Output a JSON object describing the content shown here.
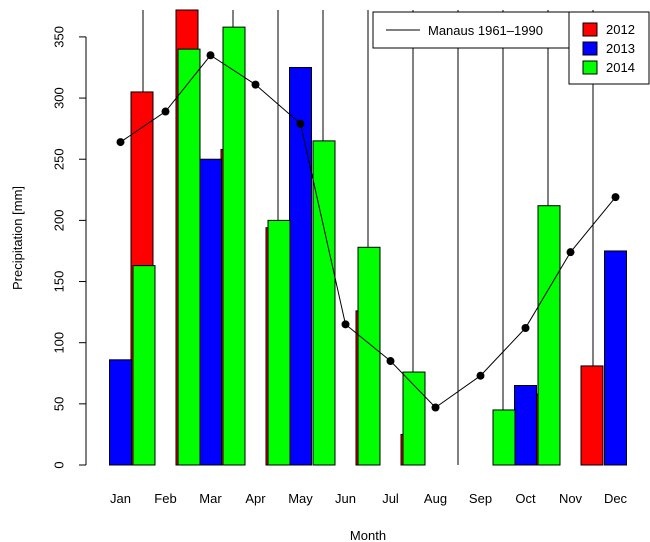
{
  "chart_data": {
    "type": "bar",
    "xlabel": "Month",
    "ylabel": "Precipitation [mm]",
    "ylim": [
      0,
      372
    ],
    "yticks": [
      0,
      50,
      100,
      150,
      200,
      250,
      300,
      350
    ],
    "categories": [
      "Jan",
      "Feb",
      "Mar",
      "Apr",
      "May",
      "Jun",
      "Jul",
      "Aug",
      "Sep",
      "Oct",
      "Nov",
      "Dec"
    ],
    "series": [
      {
        "name": "2012",
        "color": "#ff0000",
        "values": [
          0,
          305,
          372,
          258,
          194,
          0,
          126,
          25,
          0,
          0,
          58,
          81
        ]
      },
      {
        "name": "2013",
        "color": "#0000ff",
        "values": [
          86,
          0,
          250,
          0,
          325,
          0,
          0,
          0,
          0,
          65,
          0,
          175
        ]
      },
      {
        "name": "2014",
        "color": "#00ff00",
        "values": [
          163,
          340,
          358,
          200,
          265,
          178,
          76,
          0,
          45,
          212,
          0,
          0
        ]
      }
    ],
    "line": {
      "name": "Manaus 1961–1990",
      "color": "#000000",
      "values": [
        264,
        289,
        335,
        311,
        279,
        115,
        85,
        47,
        73,
        112,
        174,
        219
      ]
    },
    "legend": {
      "line_position": "top",
      "bars_position": "top-right"
    },
    "grid": "vertical lines between months"
  }
}
